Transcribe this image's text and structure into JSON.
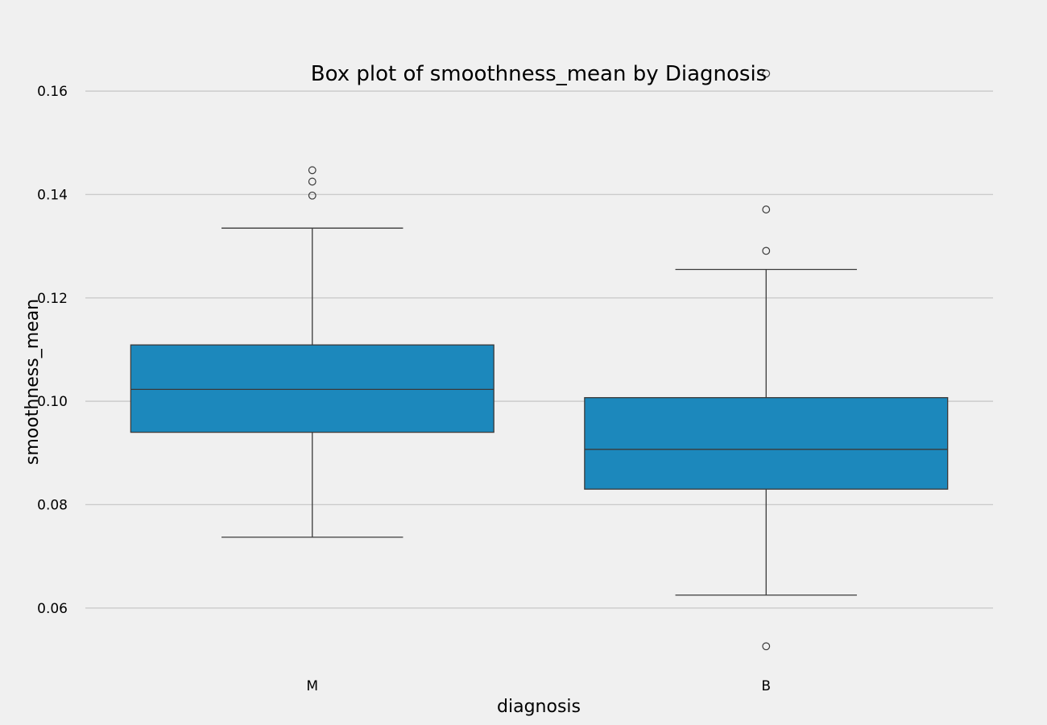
{
  "chart_data": {
    "type": "box",
    "title": "Box plot of smoothness_mean by Diagnosis",
    "xlabel": "diagnosis",
    "ylabel": "smoothness_mean",
    "ylim": [
      0.0475,
      0.1675
    ],
    "yticks": [
      0.06,
      0.08,
      0.1,
      0.12,
      0.14,
      0.16
    ],
    "ytick_labels": [
      "0.06",
      "0.08",
      "0.10",
      "0.12",
      "0.14",
      "0.16"
    ],
    "grid": "horizontal",
    "box_color": "#1c88bc",
    "categories": [
      "M",
      "B"
    ],
    "boxes": [
      {
        "category": "M",
        "whisker_low": 0.0737,
        "q1": 0.094,
        "median": 0.1023,
        "q3": 0.1109,
        "whisker_high": 0.1335,
        "outliers": [
          0.1398,
          0.1425,
          0.1447
        ]
      },
      {
        "category": "B",
        "whisker_low": 0.0625,
        "q1": 0.083,
        "median": 0.0907,
        "q3": 0.1007,
        "whisker_high": 0.1255,
        "outliers": [
          0.0526,
          0.1291,
          0.1371,
          0.1634
        ]
      }
    ]
  }
}
